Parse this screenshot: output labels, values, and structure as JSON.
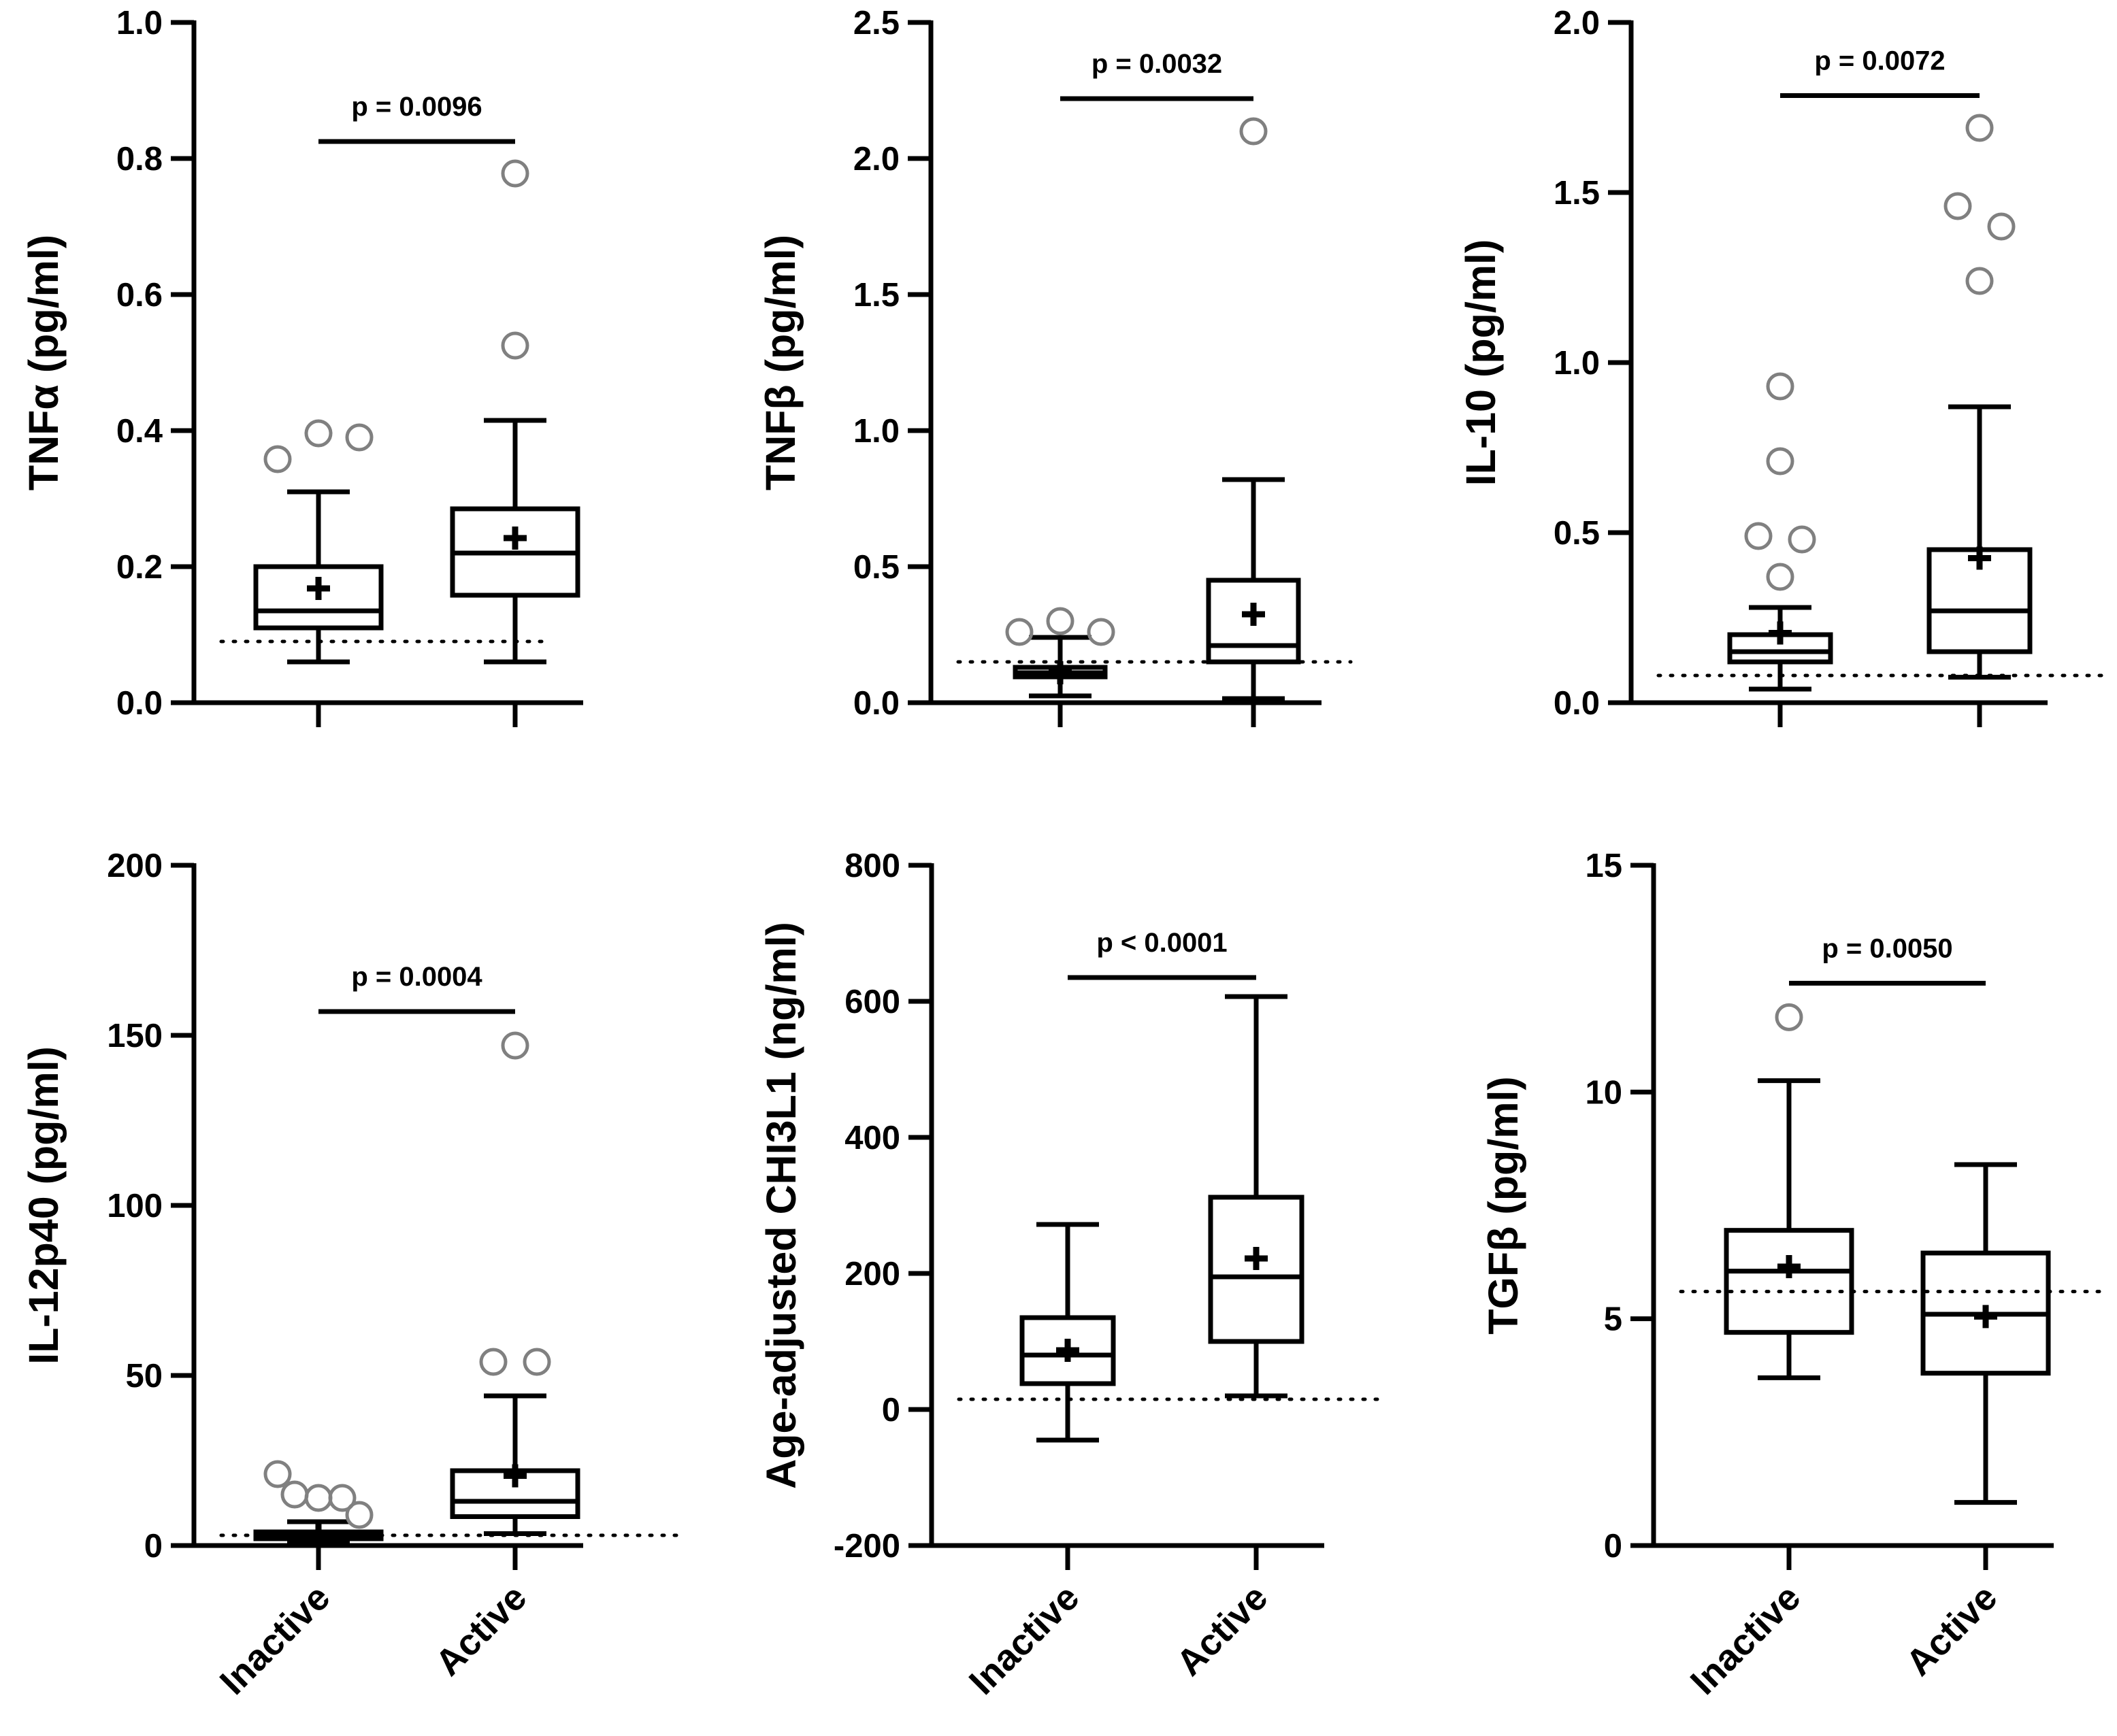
{
  "chart_data": [
    {
      "type": "box",
      "title": "",
      "ylabel": "TNFα (pg/ml)",
      "ylim": [
        0,
        1.0
      ],
      "yticks": [
        0.0,
        0.2,
        0.4,
        0.6,
        0.8,
        1.0
      ],
      "ytick_labels": [
        "0.0",
        "0.2",
        "0.4",
        "0.6",
        "0.8",
        "1.0"
      ],
      "categories": [
        "Inactive",
        "Active"
      ],
      "show_category_labels": false,
      "threshold": 0.09,
      "boxes": [
        {
          "group": "Inactive",
          "whisker_low": 0.06,
          "q1": 0.11,
          "median": 0.135,
          "q3": 0.2,
          "whisker_high": 0.31,
          "mean": 0.168,
          "outliers": [
            0.358,
            0.396,
            0.39
          ]
        },
        {
          "group": "Active",
          "whisker_low": 0.06,
          "q1": 0.158,
          "median": 0.22,
          "q3": 0.285,
          "whisker_high": 0.415,
          "mean": 0.242,
          "outliers": [
            0.525,
            0.778
          ]
        }
      ],
      "significance": {
        "label": "p = 0.0096",
        "y": 0.825
      }
    },
    {
      "type": "box",
      "title": "",
      "ylabel": "TNFβ (pg/ml)",
      "ylim": [
        0,
        2.5
      ],
      "yticks": [
        0.0,
        0.5,
        1.0,
        1.5,
        2.0,
        2.5
      ],
      "ytick_labels": [
        "0.0",
        "0.5",
        "1.0",
        "1.5",
        "2.0",
        "2.5"
      ],
      "categories": [
        "Inactive",
        "Active"
      ],
      "show_category_labels": false,
      "threshold": 0.15,
      "boxes": [
        {
          "group": "Inactive",
          "whisker_low": 0.025,
          "q1": 0.095,
          "median": 0.11,
          "q3": 0.13,
          "whisker_high": 0.24,
          "mean": 0.11,
          "outliers": [
            0.26,
            0.3,
            0.26
          ]
        },
        {
          "group": "Active",
          "whisker_low": 0.015,
          "q1": 0.15,
          "median": 0.21,
          "q3": 0.45,
          "whisker_high": 0.82,
          "mean": 0.325,
          "outliers": [
            2.1
          ]
        }
      ],
      "significance": {
        "label": "p = 0.0032",
        "y": 2.22
      }
    },
    {
      "type": "box",
      "title": "",
      "ylabel": "IL-10 (pg/ml)",
      "ylim": [
        0,
        2.0
      ],
      "yticks": [
        0.0,
        0.5,
        1.0,
        1.5,
        2.0
      ],
      "ytick_labels": [
        "0.0",
        "0.5",
        "1.0",
        "1.5",
        "2.0"
      ],
      "categories": [
        "Inactive",
        "Active"
      ],
      "show_category_labels": false,
      "threshold": 0.08,
      "boxes": [
        {
          "group": "Inactive",
          "whisker_low": 0.04,
          "q1": 0.12,
          "median": 0.15,
          "q3": 0.2,
          "whisker_high": 0.28,
          "mean": 0.205,
          "outliers": [
            0.93,
            0.71,
            0.49,
            0.48,
            0.37
          ]
        },
        {
          "group": "Active",
          "whisker_low": 0.075,
          "q1": 0.15,
          "median": 0.27,
          "q3": 0.45,
          "whisker_high": 0.87,
          "mean": 0.425,
          "outliers": [
            1.69,
            1.46,
            1.4,
            1.24
          ]
        }
      ],
      "significance": {
        "label": "p = 0.0072",
        "y": 1.785
      }
    },
    {
      "type": "box",
      "title": "",
      "ylabel": "IL-12p40 (pg/ml)",
      "ylim": [
        0,
        200
      ],
      "yticks": [
        0,
        50,
        100,
        150,
        200
      ],
      "ytick_labels": [
        "0",
        "50",
        "100",
        "150",
        "200"
      ],
      "categories": [
        "Inactive",
        "Active"
      ],
      "show_category_labels": true,
      "threshold": 3,
      "boxes": [
        {
          "group": "Inactive",
          "whisker_low": 1,
          "q1": 2,
          "median": 3,
          "q3": 4,
          "whisker_high": 7,
          "mean": 3,
          "outliers": [
            21,
            15,
            14,
            14,
            9
          ]
        },
        {
          "group": "Active",
          "whisker_low": 3.5,
          "q1": 8.5,
          "median": 13,
          "q3": 22,
          "whisker_high": 44,
          "mean": 20.5,
          "outliers": [
            147,
            54,
            54
          ]
        }
      ],
      "significance": {
        "label": "p = 0.0004",
        "y": 157
      }
    },
    {
      "type": "box",
      "title": "",
      "ylabel": "Age-adjusted CHI3L1 (ng/ml)",
      "ylim": [
        -200,
        800
      ],
      "yticks": [
        -200,
        0,
        200,
        400,
        600,
        800
      ],
      "ytick_labels": [
        "-200",
        "0",
        "200",
        "400",
        "600",
        "800"
      ],
      "categories": [
        "Inactive",
        "Active"
      ],
      "show_category_labels": true,
      "threshold": 15,
      "boxes": [
        {
          "group": "Inactive",
          "whisker_low": -45,
          "q1": 38,
          "median": 80,
          "q3": 135,
          "whisker_high": 272,
          "mean": 87,
          "outliers": []
        },
        {
          "group": "Active",
          "whisker_low": 20,
          "q1": 100,
          "median": 195,
          "q3": 312,
          "whisker_high": 607,
          "mean": 222,
          "outliers": []
        }
      ],
      "significance": {
        "label": "p < 0.0001",
        "y": 635
      }
    },
    {
      "type": "box",
      "title": "",
      "ylabel": "TGFβ (pg/ml)",
      "ylim": [
        0,
        15
      ],
      "yticks": [
        0,
        5,
        10,
        15
      ],
      "ytick_labels": [
        "0",
        "5",
        "10",
        "15"
      ],
      "categories": [
        "Inactive",
        "Active"
      ],
      "show_category_labels": true,
      "threshold": 5.6,
      "boxes": [
        {
          "group": "Inactive",
          "whisker_low": 3.7,
          "q1": 4.7,
          "median": 6.05,
          "q3": 6.95,
          "whisker_high": 10.25,
          "mean": 6.15,
          "outliers": [
            11.65
          ]
        },
        {
          "group": "Active",
          "whisker_low": 0.95,
          "q1": 3.8,
          "median": 5.1,
          "q3": 6.45,
          "whisker_high": 8.4,
          "mean": 5.05,
          "outliers": []
        }
      ],
      "significance": {
        "label": "p = 0.0050",
        "y": 12.4
      }
    }
  ]
}
